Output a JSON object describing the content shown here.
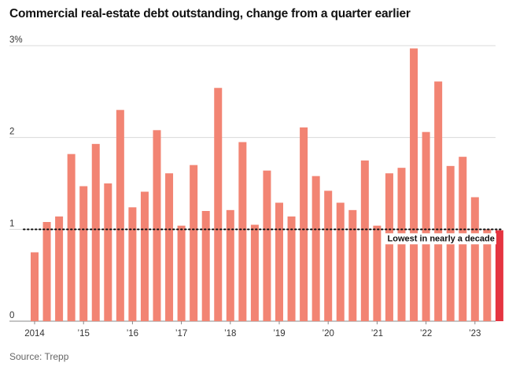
{
  "title": "Commercial real-estate debt outstanding, change from a quarter earlier",
  "source": "Source: Trepp",
  "chart_data": {
    "type": "bar",
    "title": "Commercial real-estate debt outstanding, change from a quarter earlier",
    "xlabel": "",
    "ylabel": "",
    "y_unit": "%",
    "ylim": [
      0,
      3.0
    ],
    "y_ticks": [
      {
        "value": 0,
        "label": "0"
      },
      {
        "value": 1,
        "label": "1"
      },
      {
        "value": 2,
        "label": "2"
      },
      {
        "value": 3,
        "label": "3%"
      }
    ],
    "grid": true,
    "x_tick_labels": [
      {
        "index": 0,
        "label": "2014"
      },
      {
        "index": 4,
        "label": "’15"
      },
      {
        "index": 8,
        "label": "’16"
      },
      {
        "index": 12,
        "label": "’17"
      },
      {
        "index": 16,
        "label": "’18"
      },
      {
        "index": 20,
        "label": "’19"
      },
      {
        "index": 24,
        "label": "’20"
      },
      {
        "index": 28,
        "label": "’21"
      },
      {
        "index": 32,
        "label": "’22"
      },
      {
        "index": 36,
        "label": "’23"
      }
    ],
    "categories": [
      "2014 Q1",
      "2014 Q2",
      "2014 Q3",
      "2014 Q4",
      "2015 Q1",
      "2015 Q2",
      "2015 Q3",
      "2015 Q4",
      "2016 Q1",
      "2016 Q2",
      "2016 Q3",
      "2016 Q4",
      "2017 Q1",
      "2017 Q2",
      "2017 Q3",
      "2017 Q4",
      "2018 Q1",
      "2018 Q2",
      "2018 Q3",
      "2018 Q4",
      "2019 Q1",
      "2019 Q2",
      "2019 Q3",
      "2019 Q4",
      "2020 Q1",
      "2020 Q2",
      "2020 Q3",
      "2020 Q4",
      "2021 Q1",
      "2021 Q2",
      "2021 Q3",
      "2021 Q4",
      "2022 Q1",
      "2022 Q2",
      "2022 Q3",
      "2022 Q4",
      "2023 Q1",
      "2023 Q2",
      "2023 Q3"
    ],
    "values": [
      0.75,
      1.08,
      1.14,
      1.82,
      1.47,
      1.93,
      1.5,
      2.3,
      1.24,
      1.41,
      2.08,
      1.61,
      1.04,
      1.7,
      1.2,
      2.54,
      1.21,
      1.95,
      1.05,
      1.64,
      1.29,
      1.14,
      2.11,
      1.58,
      1.42,
      1.29,
      1.21,
      1.75,
      1.04,
      1.61,
      1.67,
      2.97,
      2.06,
      2.61,
      1.69,
      1.79,
      1.35,
      1.0,
      0.99
    ],
    "bar_color": "#f28473",
    "highlight_color": "#e53440",
    "highlight_index": 38,
    "reference_line": {
      "value": 1.0,
      "style": "dotted",
      "label": "Lowest in nearly a decade"
    }
  }
}
